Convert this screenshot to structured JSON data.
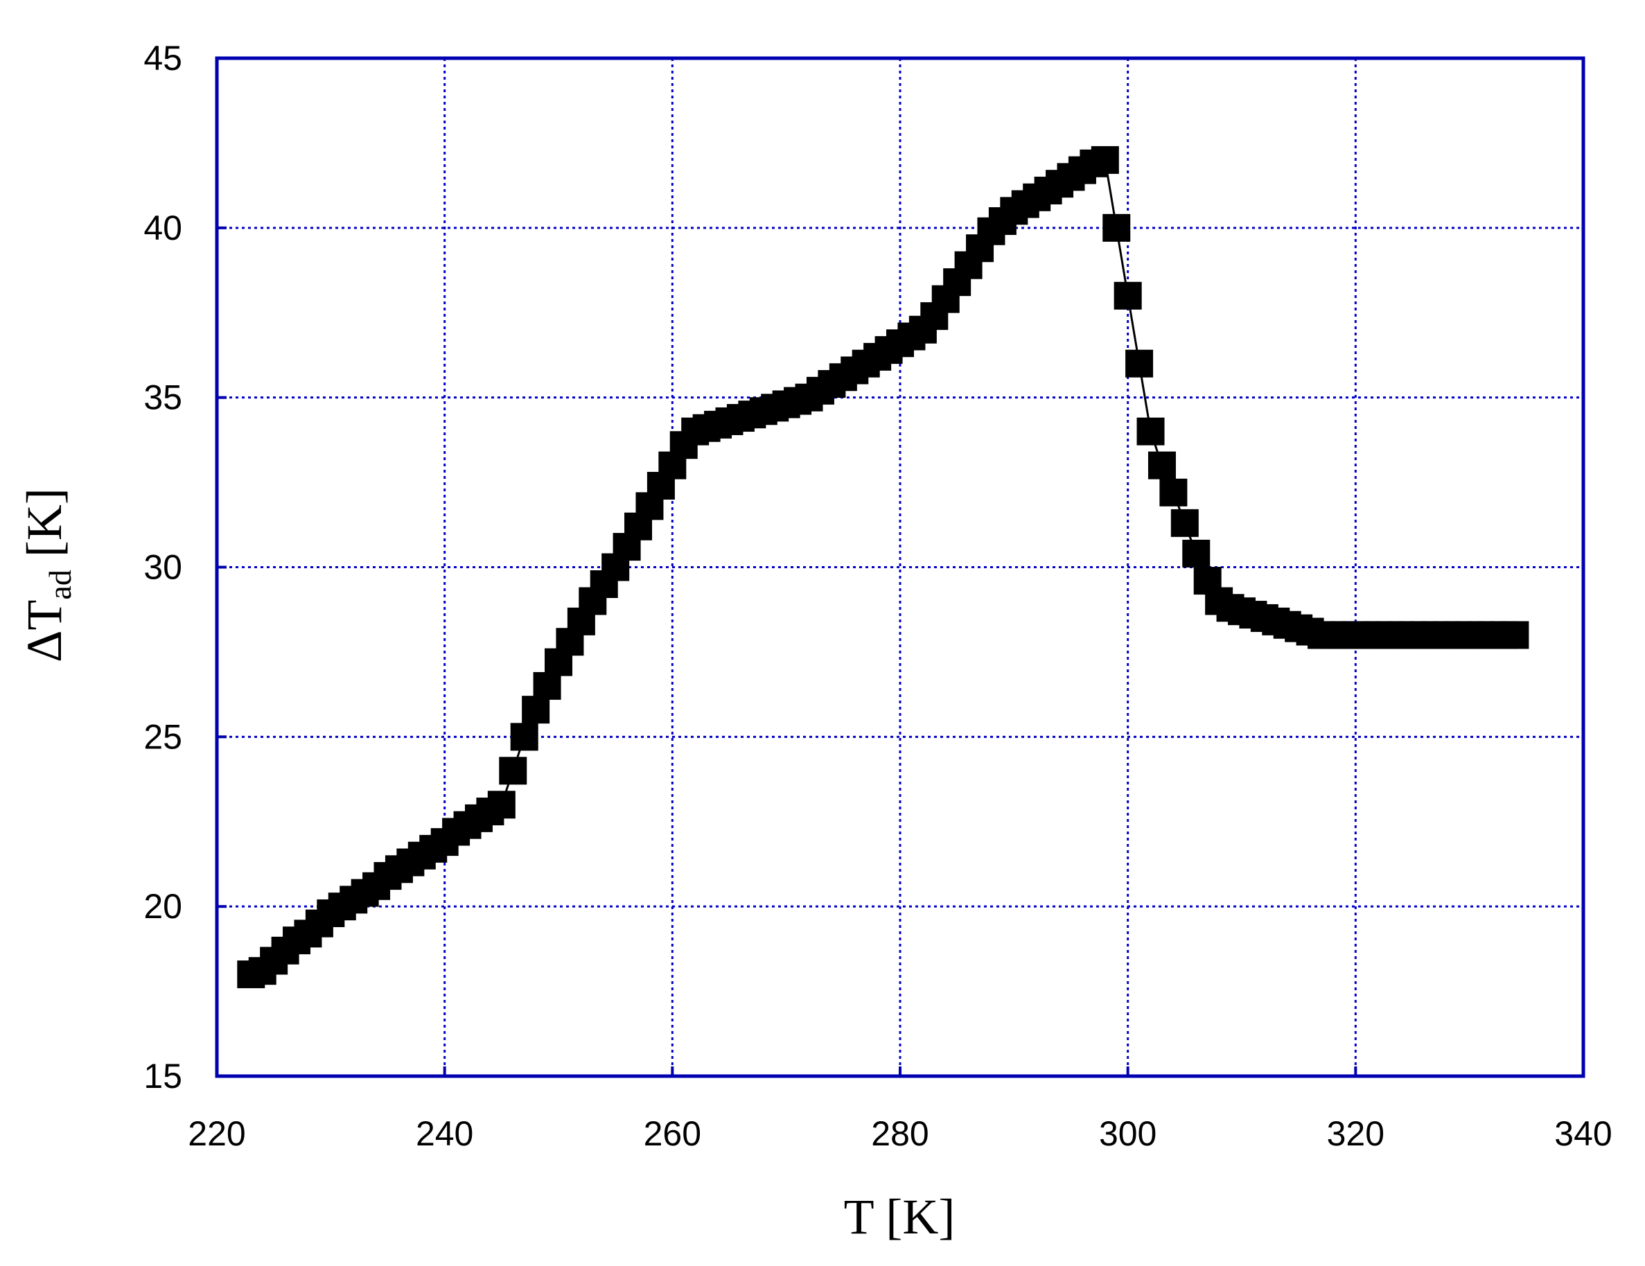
{
  "chart_data": {
    "type": "scatter",
    "xlabel": "T [K]",
    "ylabel": {
      "prefix": "ΔT",
      "subscript": "ad",
      "suffix": " [K]"
    },
    "xlim": [
      220,
      340
    ],
    "ylim": [
      15,
      45
    ],
    "xticks": [
      "220",
      "240",
      "260",
      "280",
      "300",
      "320",
      "340"
    ],
    "yticks": [
      "15",
      "20",
      "25",
      "30",
      "35",
      "40",
      "45"
    ],
    "grid": true,
    "colors": {
      "frame": "#0000b0",
      "grid": "#0000c8",
      "marker": "#000000",
      "line": "#000000"
    },
    "marker": "square",
    "series": [
      {
        "x": [
          223,
          224,
          225,
          226,
          227,
          228,
          229,
          230,
          231,
          232,
          233,
          234,
          235,
          236,
          237,
          238,
          239,
          240,
          241,
          242,
          243,
          244,
          245,
          246,
          247,
          248,
          249,
          250,
          251,
          252,
          253,
          254,
          255,
          256,
          257,
          258,
          259,
          260,
          261,
          262,
          263,
          264,
          265,
          266,
          267,
          268,
          269,
          270,
          271,
          272,
          273,
          274,
          275,
          276,
          277,
          278,
          279,
          280,
          281,
          282,
          283,
          284,
          285,
          286,
          287,
          288,
          289,
          290,
          291,
          292,
          293,
          294,
          295,
          296,
          297,
          298,
          299,
          300,
          301,
          302,
          303,
          304,
          305,
          306,
          307,
          308,
          309,
          310,
          311,
          312,
          313,
          314,
          315,
          316,
          317,
          318,
          319,
          320,
          321,
          322,
          323,
          324,
          325,
          326,
          327,
          328,
          329,
          330,
          331,
          332,
          333,
          334
        ],
        "y": [
          18.0,
          18.1,
          18.4,
          18.7,
          19.0,
          19.2,
          19.5,
          19.8,
          20.0,
          20.2,
          20.4,
          20.6,
          20.9,
          21.1,
          21.3,
          21.5,
          21.7,
          21.9,
          22.2,
          22.4,
          22.6,
          22.8,
          23.0,
          24.0,
          25.0,
          25.8,
          26.5,
          27.2,
          27.8,
          28.4,
          29.0,
          29.5,
          30.0,
          30.6,
          31.2,
          31.8,
          32.4,
          33.0,
          33.6,
          34.0,
          34.1,
          34.2,
          34.3,
          34.4,
          34.5,
          34.6,
          34.7,
          34.8,
          34.9,
          35.0,
          35.2,
          35.4,
          35.6,
          35.8,
          36.0,
          36.2,
          36.4,
          36.6,
          36.8,
          37.0,
          37.4,
          37.9,
          38.4,
          38.9,
          39.4,
          39.9,
          40.2,
          40.5,
          40.7,
          40.9,
          41.1,
          41.3,
          41.5,
          41.7,
          41.9,
          42.0,
          40.0,
          38.0,
          36.0,
          34.0,
          33.0,
          32.2,
          31.3,
          30.4,
          29.6,
          29.0,
          28.8,
          28.7,
          28.6,
          28.5,
          28.4,
          28.3,
          28.2,
          28.1,
          28.0,
          28.0,
          28.0,
          28.0,
          28.0,
          28.0,
          28.0,
          28.0,
          28.0,
          28.0,
          28.0,
          28.0,
          28.0,
          28.0,
          28.0,
          28.0,
          28.0,
          28.0
        ]
      }
    ]
  }
}
